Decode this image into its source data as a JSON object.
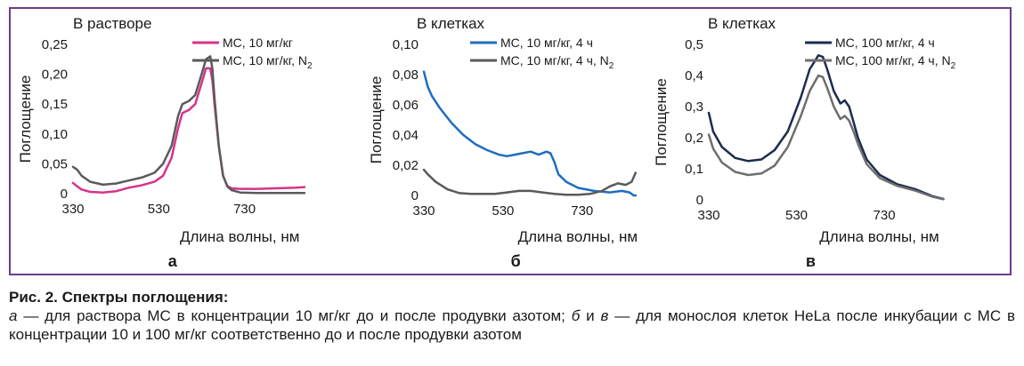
{
  "chart_data": [
    {
      "type": "line",
      "title": "В растворе",
      "xlabel": "Длина волны, нм",
      "ylabel": "Поглощение",
      "panel_label": "а",
      "xlim": [
        330,
        870
      ],
      "ylim": [
        0,
        0.25
      ],
      "xticks": [
        "330",
        "530",
        "730"
      ],
      "yticks": [
        "0",
        "0,05",
        "0,10",
        "0,15",
        "0,20",
        "0,25"
      ],
      "legend_position": "top-right",
      "series": [
        {
          "legend_main": "МС, 10 мг/кг",
          "legend_sub": "",
          "color": "#d6338a",
          "x": [
            330,
            340,
            350,
            370,
            400,
            430,
            460,
            490,
            520,
            540,
            560,
            575,
            585,
            600,
            615,
            630,
            640,
            650,
            655,
            660,
            670,
            680,
            690,
            700,
            720,
            760,
            800,
            850,
            870
          ],
          "y": [
            0.018,
            0.012,
            0.007,
            0.003,
            0.002,
            0.004,
            0.01,
            0.014,
            0.02,
            0.03,
            0.06,
            0.11,
            0.135,
            0.14,
            0.15,
            0.185,
            0.21,
            0.21,
            0.19,
            0.15,
            0.08,
            0.03,
            0.013,
            0.009,
            0.008,
            0.008,
            0.009,
            0.01,
            0.011
          ]
        },
        {
          "legend_main": "МС, 10 мг/кг, N",
          "legend_sub": "2",
          "color": "#5a5a5a",
          "x": [
            330,
            340,
            350,
            370,
            400,
            430,
            460,
            490,
            520,
            540,
            560,
            575,
            585,
            600,
            615,
            630,
            640,
            650,
            655,
            660,
            670,
            680,
            690,
            700,
            720,
            760,
            800,
            850,
            870
          ],
          "y": [
            0.045,
            0.04,
            0.03,
            0.02,
            0.015,
            0.017,
            0.022,
            0.027,
            0.035,
            0.05,
            0.08,
            0.13,
            0.15,
            0.155,
            0.165,
            0.2,
            0.225,
            0.23,
            0.21,
            0.16,
            0.08,
            0.03,
            0.012,
            0.006,
            0.002,
            0.001,
            0.001,
            0.001,
            0.001
          ]
        }
      ]
    },
    {
      "type": "line",
      "title": "В клетках",
      "xlabel": "Длина волны, нм",
      "ylabel": "Поглощение",
      "panel_label": "б",
      "xlim": [
        330,
        870
      ],
      "ylim": [
        0,
        0.1
      ],
      "xticks": [
        "330",
        "530",
        "730"
      ],
      "yticks": [
        "0",
        "0,02",
        "0,04",
        "0,06",
        "0,08",
        "0,10"
      ],
      "legend_position": "top-right",
      "series": [
        {
          "legend_main": "МС, 10 мг/кг, 4 ч",
          "legend_sub": "",
          "color": "#1f6dbf",
          "x": [
            330,
            340,
            350,
            370,
            400,
            430,
            460,
            490,
            520,
            540,
            560,
            580,
            600,
            620,
            640,
            650,
            660,
            670,
            690,
            720,
            760,
            800,
            830,
            850,
            860,
            865
          ],
          "y": [
            0.082,
            0.072,
            0.066,
            0.058,
            0.048,
            0.04,
            0.034,
            0.03,
            0.027,
            0.026,
            0.027,
            0.028,
            0.029,
            0.027,
            0.029,
            0.028,
            0.022,
            0.014,
            0.009,
            0.005,
            0.003,
            0.002,
            0.003,
            0.002,
            0.0,
            0.0
          ]
        },
        {
          "legend_main": "МС, 10 мг/кг, 4 ч, N",
          "legend_sub": "2",
          "color": "#5a5a5a",
          "x": [
            330,
            340,
            360,
            390,
            420,
            450,
            480,
            510,
            540,
            570,
            600,
            630,
            660,
            690,
            720,
            750,
            780,
            800,
            820,
            840,
            855,
            865
          ],
          "y": [
            0.017,
            0.014,
            0.009,
            0.004,
            0.0015,
            0.001,
            0.001,
            0.001,
            0.002,
            0.003,
            0.003,
            0.002,
            0.001,
            0.0005,
            0.0005,
            0.001,
            0.003,
            0.006,
            0.008,
            0.007,
            0.009,
            0.015
          ]
        }
      ]
    },
    {
      "type": "line",
      "title": "В клетках",
      "xlabel": "Длина волны, нм",
      "ylabel": "Поглощение",
      "panel_label": "в",
      "xlim": [
        330,
        870
      ],
      "ylim": [
        0,
        0.5
      ],
      "xticks": [
        "330",
        "530",
        "730"
      ],
      "yticks": [
        "0",
        "0,1",
        "0,2",
        "0,3",
        "0,4",
        "0,5"
      ],
      "legend_position": "top-right",
      "series": [
        {
          "legend_main": "МС, 100 мг/кг, 4 ч",
          "legend_sub": "",
          "color": "#1d2b4f",
          "x": [
            330,
            340,
            360,
            390,
            420,
            450,
            480,
            510,
            540,
            560,
            580,
            590,
            600,
            615,
            630,
            640,
            650,
            660,
            670,
            690,
            720,
            760,
            800,
            840,
            865
          ],
          "y": [
            0.28,
            0.22,
            0.17,
            0.135,
            0.125,
            0.13,
            0.16,
            0.22,
            0.33,
            0.42,
            0.465,
            0.46,
            0.42,
            0.35,
            0.31,
            0.32,
            0.3,
            0.25,
            0.2,
            0.13,
            0.08,
            0.05,
            0.035,
            0.012,
            0.003
          ]
        },
        {
          "legend_main": "МС, 100 мг/кг, 4 ч, N",
          "legend_sub": "2",
          "color": "#6e6e6e",
          "x": [
            330,
            340,
            360,
            390,
            420,
            450,
            480,
            510,
            540,
            560,
            580,
            590,
            600,
            615,
            630,
            640,
            650,
            660,
            670,
            690,
            720,
            760,
            800,
            840,
            865
          ],
          "y": [
            0.21,
            0.165,
            0.12,
            0.09,
            0.08,
            0.085,
            0.11,
            0.17,
            0.27,
            0.35,
            0.4,
            0.395,
            0.36,
            0.3,
            0.26,
            0.27,
            0.255,
            0.22,
            0.18,
            0.115,
            0.07,
            0.045,
            0.03,
            0.01,
            0.002
          ]
        }
      ]
    }
  ],
  "caption": {
    "title": "Рис. 2. Спектры поглощения:",
    "parts": [
      {
        "text": "а",
        "italic": true
      },
      {
        "text": " — для раствора МС в концентрации 10 мг/кг до и после продувки азотом; ",
        "italic": false
      },
      {
        "text": "б",
        "italic": true
      },
      {
        "text": " и ",
        "italic": false
      },
      {
        "text": "в",
        "italic": true
      },
      {
        "text": " — для монослоя клеток HeLa после инкубации с МС в концентрации 10 и 100 мг/кг соответственно до и после продувки азотом",
        "italic": false
      }
    ]
  }
}
